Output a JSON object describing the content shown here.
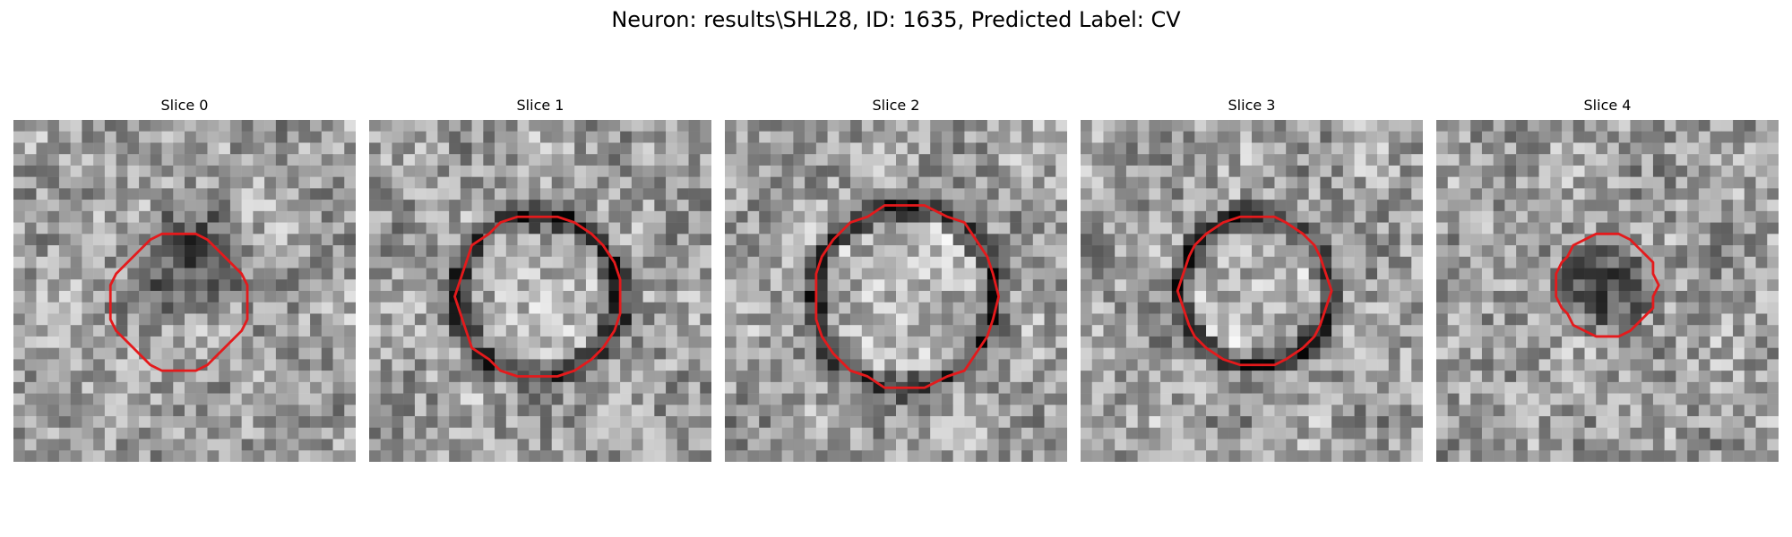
{
  "figure": {
    "title": "Neuron: results\\SHL28, ID: 1635, Predicted Label: CV"
  },
  "colors": {
    "background": "#ffffff",
    "contour": "#e41a1c"
  },
  "slices": [
    {
      "label": "Slice 0",
      "contour_color": "#e41a1c",
      "description_icon": "grayscale-microscopy-slice"
    },
    {
      "label": "Slice 1",
      "contour_color": "#e41a1c",
      "description_icon": "grayscale-microscopy-slice"
    },
    {
      "label": "Slice 2",
      "contour_color": "#e41a1c",
      "description_icon": "grayscale-microscopy-slice"
    },
    {
      "label": "Slice 3",
      "contour_color": "#e41a1c",
      "description_icon": "grayscale-microscopy-slice"
    },
    {
      "label": "Slice 4",
      "contour_color": "#e41a1c",
      "description_icon": "grayscale-microscopy-slice"
    }
  ]
}
